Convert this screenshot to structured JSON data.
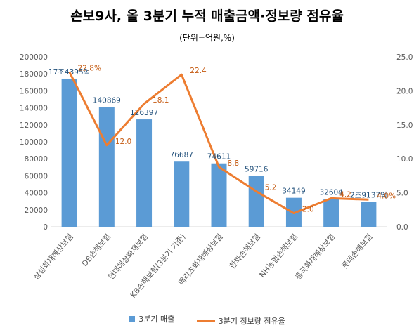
{
  "chart_data": {
    "type": "bar+line",
    "title": "손보9사, 올 3분기 누적 매출금액·정보량 점유율",
    "subtitle": "(단위=억원,%)",
    "categories": [
      "삼성화재해상보험",
      "DB손해보험",
      "현대해상화재보험",
      "KB손해보험(3분기 기준)",
      "메리츠화재해상보험",
      "한화손해보험",
      "NH농협손해보험",
      "흥국화재해상보험",
      "롯데손해보험"
    ],
    "series": [
      {
        "name": "3분기 매출",
        "type": "bar",
        "axis": "left",
        "values": [
          174395,
          140869,
          126397,
          76687,
          74611,
          59716,
          34149,
          32604,
          29137
        ],
        "labels": [
          "17조4395억",
          "140869",
          "126397",
          "76687",
          "74611",
          "59716",
          "34149",
          "32604",
          "2조9137억"
        ]
      },
      {
        "name": "3분기 정보량 점유율",
        "type": "line",
        "axis": "right",
        "values": [
          22.8,
          12.0,
          18.1,
          22.4,
          8.8,
          5.2,
          2.0,
          4.2,
          4.0
        ],
        "labels": [
          "22.8%",
          "12.0",
          "18.1",
          "22.4",
          "8.8",
          "5.2",
          "2.0",
          "4.2",
          "4.0%"
        ]
      }
    ],
    "y_left": {
      "min": 0,
      "max": 200000,
      "ticks": [
        0,
        20000,
        40000,
        60000,
        80000,
        100000,
        120000,
        140000,
        160000,
        180000,
        200000
      ]
    },
    "y_right": {
      "min": 0,
      "max": 25,
      "ticks": [
        "0.0",
        "5.0",
        "10.0",
        "15.0",
        "20.0",
        "25.0"
      ]
    },
    "grid": false,
    "legend": "bottom",
    "colors": {
      "bar": "#5b9bd5",
      "line": "#ed7d31",
      "bar_label": "#1f4e79",
      "line_label": "#c55a11",
      "axis_text": "#595959"
    }
  }
}
